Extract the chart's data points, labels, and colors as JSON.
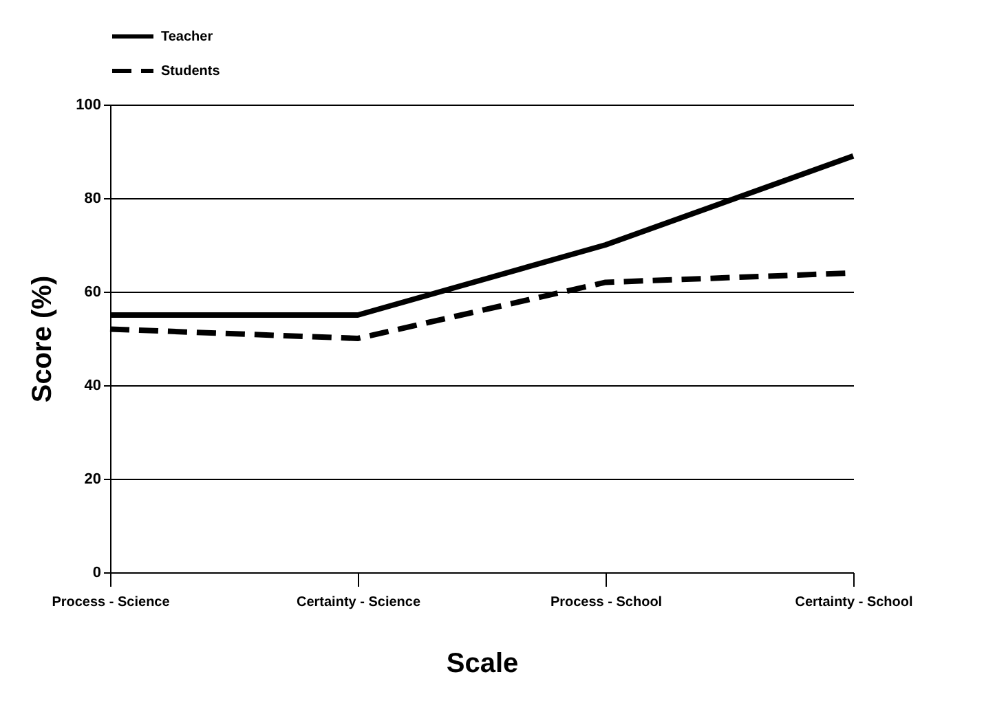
{
  "chart_data": {
    "type": "line",
    "xlabel": "Scale",
    "ylabel": "Score (%)",
    "categories": [
      "Process - Science",
      "Certainty - Science",
      "Process - School",
      "Certainty - School"
    ],
    "series": [
      {
        "name": "Teacher",
        "color": "#000000",
        "line_style": "solid",
        "values": [
          55,
          55,
          70,
          89
        ]
      },
      {
        "name": "Students",
        "color": "#000000",
        "line_style": "dashed",
        "values": [
          52,
          50,
          62,
          64
        ]
      }
    ],
    "ylim": [
      0,
      100
    ],
    "yticks": [
      0,
      20,
      40,
      60,
      80,
      100
    ],
    "grid": "y",
    "legend": "top",
    "marker": "none"
  }
}
